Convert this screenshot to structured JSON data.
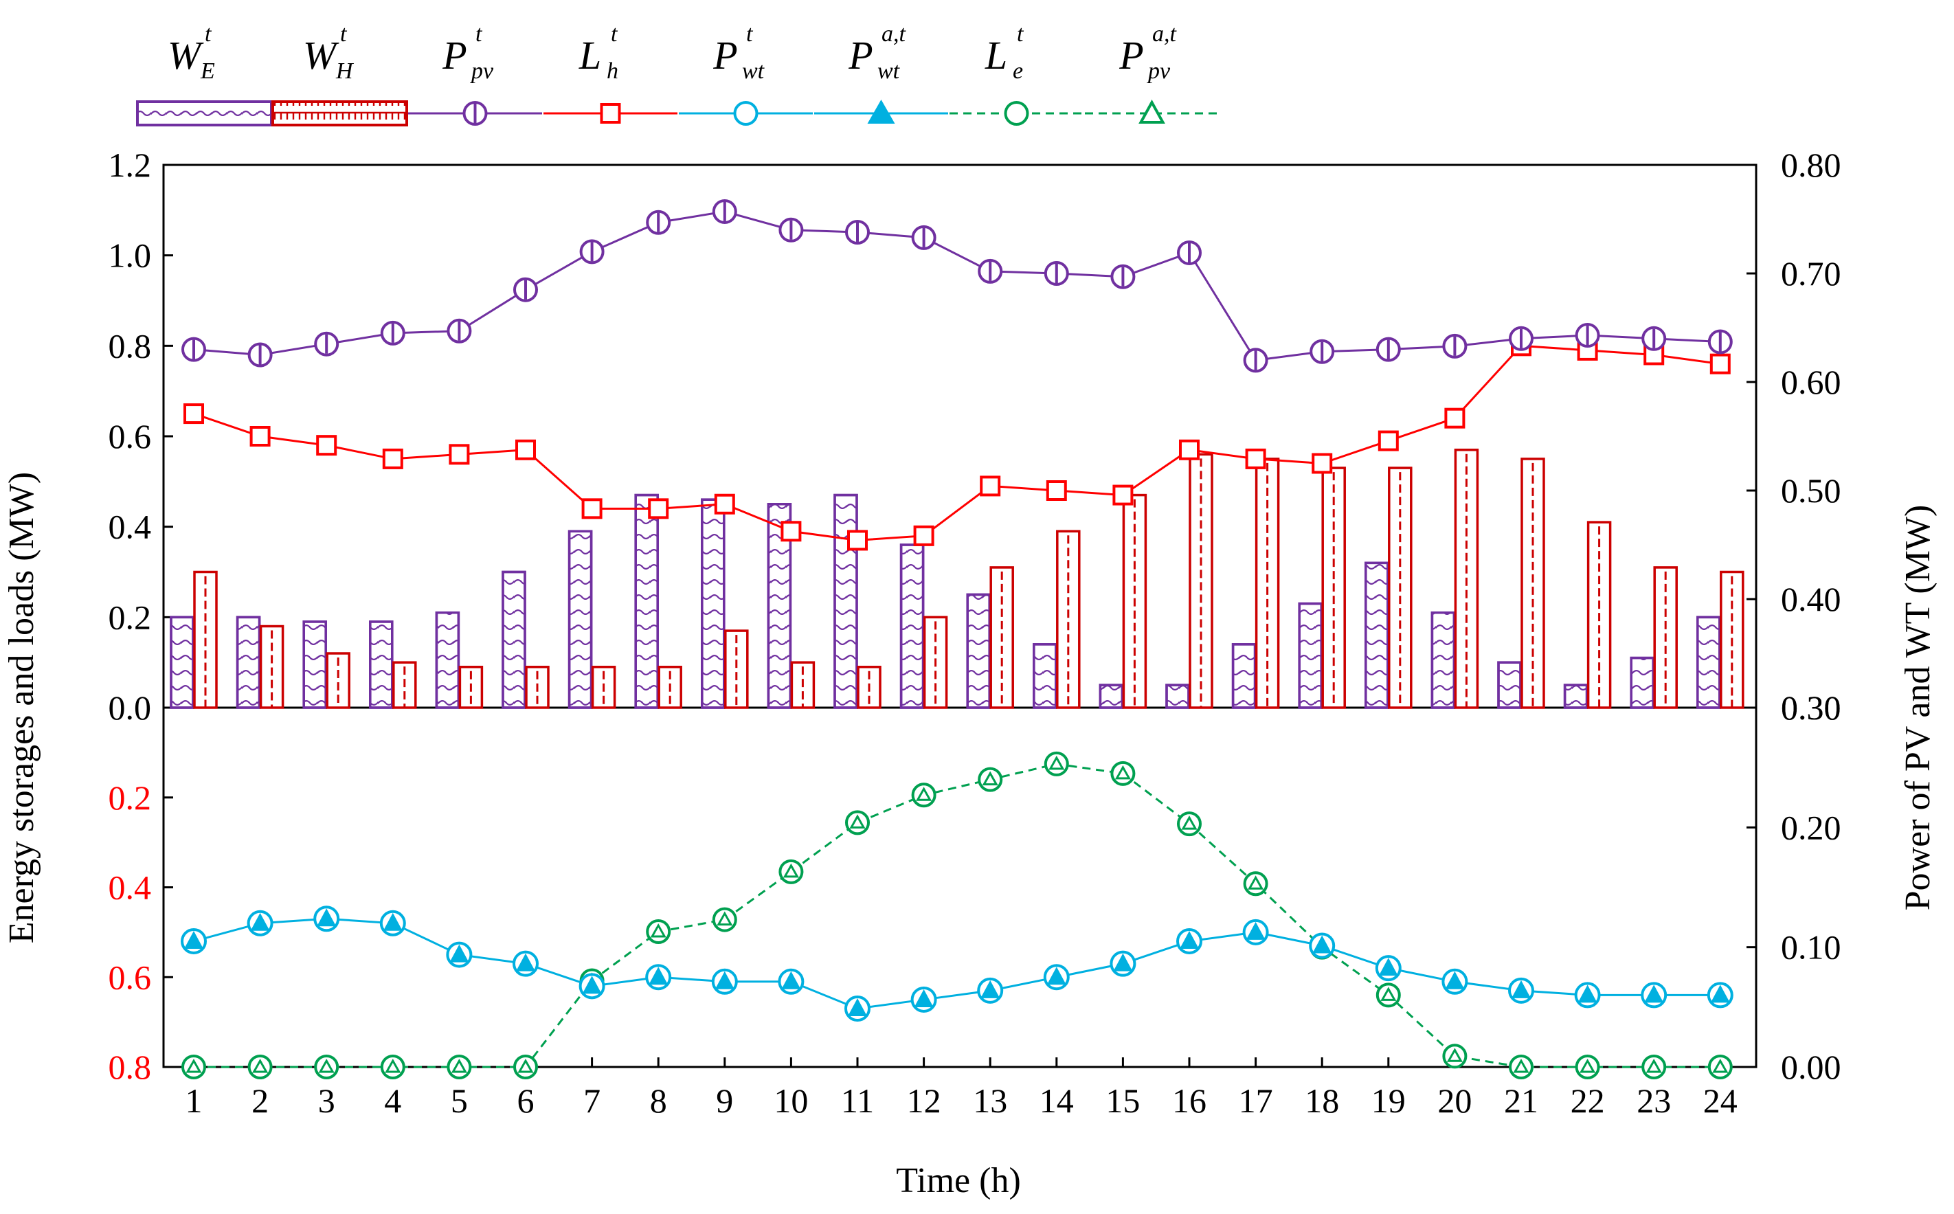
{
  "chart_data": {
    "type": "bar+line",
    "xlabel": "Time (h)",
    "x": [
      1,
      2,
      3,
      4,
      5,
      6,
      7,
      8,
      9,
      10,
      11,
      12,
      13,
      14,
      15,
      16,
      17,
      18,
      19,
      20,
      21,
      22,
      23,
      24
    ],
    "ylabel_left": "Energy  storages and loads (MW)",
    "ylabel_right": "Power of PV and WT (MW)",
    "left_top_ticks": [
      "0.0",
      "0.2",
      "0.4",
      "0.6",
      "0.8",
      "1.0",
      "1.2"
    ],
    "left_bottom_ticks": [
      "0.2",
      "0.4",
      "0.6",
      "0.8"
    ],
    "right_top_ticks": [
      "0.30",
      "0.40",
      "0.50",
      "0.60",
      "0.70",
      "0.80"
    ],
    "right_bottom_ticks": [
      "0.00",
      "0.10",
      "0.20",
      "0.30"
    ],
    "left_top_range": [
      0,
      1.2
    ],
    "left_bottom_range": [
      0.8,
      0
    ],
    "right_top_range": [
      0.3,
      0.8
    ],
    "right_bottom_range": [
      0,
      0.3
    ],
    "legend": [
      {
        "id": "WE",
        "base": "W",
        "sub": "E",
        "sup": "t",
        "style": "bar-hatch",
        "color": "#7030a0"
      },
      {
        "id": "WH",
        "base": "W",
        "sub": "H",
        "sup": "t",
        "style": "bar-comb",
        "color": "#cc0000"
      },
      {
        "id": "Ppv",
        "base": "P",
        "sub": "pv",
        "sup": "t",
        "style": "line-circle-plus",
        "color": "#7030a0"
      },
      {
        "id": "Lh",
        "base": "L",
        "sub": "h",
        "sup": "t",
        "style": "line-square",
        "color": "#ff0000"
      },
      {
        "id": "Pwt",
        "base": "P",
        "sub": "wt",
        "sup": "t",
        "style": "line-circle",
        "color": "#00b0e0"
      },
      {
        "id": "Pwt_a",
        "base": "P",
        "sub": "wt",
        "sup": "a,t",
        "style": "line-triangle",
        "color": "#00b0e0"
      },
      {
        "id": "Le",
        "base": "L",
        "sub": "e",
        "sup": "t",
        "style": "dashed-circle",
        "color": "#00a050"
      },
      {
        "id": "Ppv_a",
        "base": "P",
        "sub": "pv",
        "sup": "a,t",
        "style": "dashed-triangle",
        "color": "#00a050"
      }
    ],
    "series": [
      {
        "name": "W_E^t",
        "panel": "top",
        "axis": "left",
        "type": "bar",
        "color": "#7030a0",
        "values": [
          0.2,
          0.2,
          0.19,
          0.19,
          0.21,
          0.3,
          0.39,
          0.47,
          0.46,
          0.45,
          0.47,
          0.36,
          0.25,
          0.14,
          0.05,
          0.05,
          0.14,
          0.23,
          0.32,
          0.21,
          0.1,
          0.05,
          0.11,
          0.2
        ]
      },
      {
        "name": "W_H^t",
        "panel": "top",
        "axis": "left",
        "type": "bar",
        "color": "#cc0000",
        "values": [
          0.3,
          0.18,
          0.12,
          0.1,
          0.09,
          0.09,
          0.09,
          0.09,
          0.17,
          0.1,
          0.09,
          0.2,
          0.31,
          0.39,
          0.47,
          0.56,
          0.55,
          0.53,
          0.53,
          0.57,
          0.55,
          0.41,
          0.31,
          0.3
        ]
      },
      {
        "name": "P_pv^t",
        "panel": "top",
        "axis": "right",
        "type": "line",
        "color": "#7030a0",
        "values": [
          0.63,
          0.625,
          0.635,
          0.645,
          0.647,
          0.685,
          0.72,
          0.747,
          0.757,
          0.74,
          0.738,
          0.733,
          0.702,
          0.7,
          0.697,
          0.719,
          0.62,
          0.628,
          0.63,
          0.633,
          0.64,
          0.643,
          0.64,
          0.637
        ]
      },
      {
        "name": "L_h^t",
        "panel": "top",
        "axis": "left",
        "type": "line",
        "color": "#ff0000",
        "values": [
          0.65,
          0.6,
          0.58,
          0.55,
          0.56,
          0.57,
          0.44,
          0.44,
          0.45,
          0.39,
          0.37,
          0.38,
          0.49,
          0.48,
          0.47,
          0.57,
          0.55,
          0.54,
          0.59,
          0.64,
          0.8,
          0.79,
          0.78,
          0.76
        ]
      },
      {
        "name": "P_wt^t",
        "panel": "bottom",
        "axis": "left",
        "type": "line",
        "color": "#00b0e0",
        "values": [
          0.52,
          0.48,
          0.47,
          0.48,
          0.55,
          0.57,
          0.62,
          0.6,
          0.61,
          0.61,
          0.67,
          0.65,
          0.63,
          0.6,
          0.57,
          0.52,
          0.5,
          0.53,
          0.58,
          0.61,
          0.63,
          0.64,
          0.64,
          0.64
        ]
      },
      {
        "name": "P_wt^{a,t}",
        "panel": "bottom",
        "axis": "left",
        "type": "line",
        "color": "#00b0e0",
        "values": [
          0.52,
          0.48,
          0.47,
          0.48,
          0.55,
          0.57,
          0.62,
          0.6,
          0.61,
          0.61,
          0.67,
          0.65,
          0.63,
          0.6,
          0.57,
          0.52,
          0.5,
          0.53,
          0.58,
          0.61,
          0.63,
          0.64,
          0.64,
          0.64
        ]
      },
      {
        "name": "L_e^t",
        "panel": "bottom",
        "axis": "right",
        "type": "dashed-line",
        "color": "#00a050",
        "values": [
          0,
          0,
          0,
          0,
          0,
          0,
          0.072,
          0.113,
          0.123,
          0.163,
          0.204,
          0.227,
          0.24,
          0.253,
          0.245,
          0.203,
          0.153,
          0.1,
          0.06,
          0.009,
          0,
          0,
          0,
          0
        ]
      },
      {
        "name": "P_pv^{a,t}",
        "panel": "bottom",
        "axis": "right",
        "type": "dashed-line",
        "color": "#00a050",
        "values": [
          0,
          0,
          0,
          0,
          0,
          0,
          0.072,
          0.113,
          0.123,
          0.163,
          0.204,
          0.227,
          0.24,
          0.253,
          0.245,
          0.203,
          0.153,
          0.1,
          0.06,
          0.009,
          0,
          0,
          0,
          0
        ]
      }
    ]
  },
  "colors": {
    "purple": "#7030a0",
    "dark_red": "#cc0000",
    "red": "#ff0000",
    "cyan": "#00b0e0",
    "green": "#00a050"
  }
}
